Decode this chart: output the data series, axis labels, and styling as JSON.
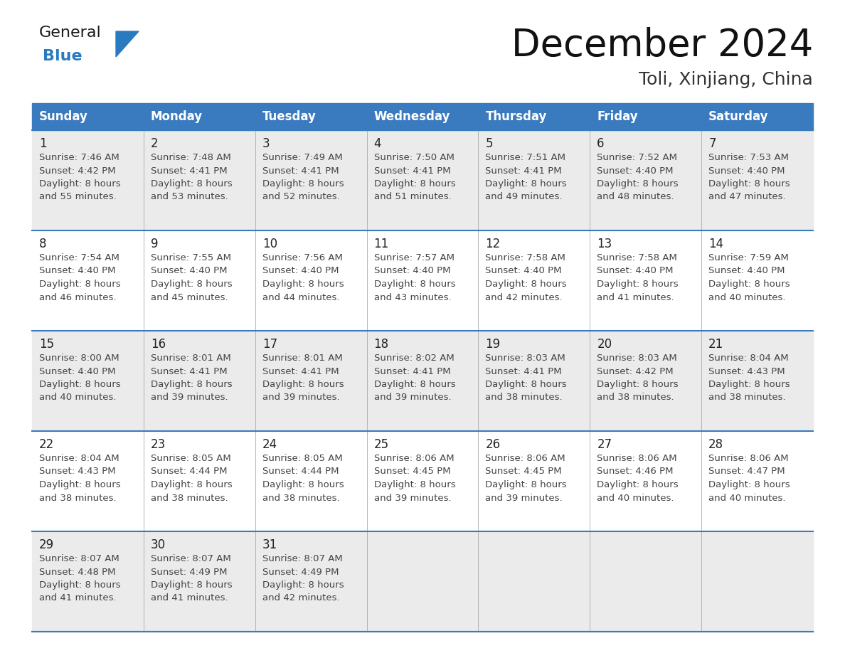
{
  "title": "December 2024",
  "subtitle": "Toli, Xinjiang, China",
  "days_of_week": [
    "Sunday",
    "Monday",
    "Tuesday",
    "Wednesday",
    "Thursday",
    "Friday",
    "Saturday"
  ],
  "header_color": "#3a7abf",
  "header_text_color": "#ffffff",
  "row_bg_odd": "#ebebeb",
  "row_bg_even": "#ffffff",
  "text_color": "#444444",
  "day_num_color": "#222222",
  "line_color": "#3a7abf",
  "background_color": "#ffffff",
  "logo_general_color": "#1a1a1a",
  "logo_blue_color": "#2a7abf",
  "weeks": [
    [
      {
        "day": 1,
        "sunrise": "7:46 AM",
        "sunset": "4:42 PM",
        "daylight": "8 hours and 55 minutes."
      },
      {
        "day": 2,
        "sunrise": "7:48 AM",
        "sunset": "4:41 PM",
        "daylight": "8 hours and 53 minutes."
      },
      {
        "day": 3,
        "sunrise": "7:49 AM",
        "sunset": "4:41 PM",
        "daylight": "8 hours and 52 minutes."
      },
      {
        "day": 4,
        "sunrise": "7:50 AM",
        "sunset": "4:41 PM",
        "daylight": "8 hours and 51 minutes."
      },
      {
        "day": 5,
        "sunrise": "7:51 AM",
        "sunset": "4:41 PM",
        "daylight": "8 hours and 49 minutes."
      },
      {
        "day": 6,
        "sunrise": "7:52 AM",
        "sunset": "4:40 PM",
        "daylight": "8 hours and 48 minutes."
      },
      {
        "day": 7,
        "sunrise": "7:53 AM",
        "sunset": "4:40 PM",
        "daylight": "8 hours and 47 minutes."
      }
    ],
    [
      {
        "day": 8,
        "sunrise": "7:54 AM",
        "sunset": "4:40 PM",
        "daylight": "8 hours and 46 minutes."
      },
      {
        "day": 9,
        "sunrise": "7:55 AM",
        "sunset": "4:40 PM",
        "daylight": "8 hours and 45 minutes."
      },
      {
        "day": 10,
        "sunrise": "7:56 AM",
        "sunset": "4:40 PM",
        "daylight": "8 hours and 44 minutes."
      },
      {
        "day": 11,
        "sunrise": "7:57 AM",
        "sunset": "4:40 PM",
        "daylight": "8 hours and 43 minutes."
      },
      {
        "day": 12,
        "sunrise": "7:58 AM",
        "sunset": "4:40 PM",
        "daylight": "8 hours and 42 minutes."
      },
      {
        "day": 13,
        "sunrise": "7:58 AM",
        "sunset": "4:40 PM",
        "daylight": "8 hours and 41 minutes."
      },
      {
        "day": 14,
        "sunrise": "7:59 AM",
        "sunset": "4:40 PM",
        "daylight": "8 hours and 40 minutes."
      }
    ],
    [
      {
        "day": 15,
        "sunrise": "8:00 AM",
        "sunset": "4:40 PM",
        "daylight": "8 hours and 40 minutes."
      },
      {
        "day": 16,
        "sunrise": "8:01 AM",
        "sunset": "4:41 PM",
        "daylight": "8 hours and 39 minutes."
      },
      {
        "day": 17,
        "sunrise": "8:01 AM",
        "sunset": "4:41 PM",
        "daylight": "8 hours and 39 minutes."
      },
      {
        "day": 18,
        "sunrise": "8:02 AM",
        "sunset": "4:41 PM",
        "daylight": "8 hours and 39 minutes."
      },
      {
        "day": 19,
        "sunrise": "8:03 AM",
        "sunset": "4:41 PM",
        "daylight": "8 hours and 38 minutes."
      },
      {
        "day": 20,
        "sunrise": "8:03 AM",
        "sunset": "4:42 PM",
        "daylight": "8 hours and 38 minutes."
      },
      {
        "day": 21,
        "sunrise": "8:04 AM",
        "sunset": "4:43 PM",
        "daylight": "8 hours and 38 minutes."
      }
    ],
    [
      {
        "day": 22,
        "sunrise": "8:04 AM",
        "sunset": "4:43 PM",
        "daylight": "8 hours and 38 minutes."
      },
      {
        "day": 23,
        "sunrise": "8:05 AM",
        "sunset": "4:44 PM",
        "daylight": "8 hours and 38 minutes."
      },
      {
        "day": 24,
        "sunrise": "8:05 AM",
        "sunset": "4:44 PM",
        "daylight": "8 hours and 38 minutes."
      },
      {
        "day": 25,
        "sunrise": "8:06 AM",
        "sunset": "4:45 PM",
        "daylight": "8 hours and 39 minutes."
      },
      {
        "day": 26,
        "sunrise": "8:06 AM",
        "sunset": "4:45 PM",
        "daylight": "8 hours and 39 minutes."
      },
      {
        "day": 27,
        "sunrise": "8:06 AM",
        "sunset": "4:46 PM",
        "daylight": "8 hours and 40 minutes."
      },
      {
        "day": 28,
        "sunrise": "8:06 AM",
        "sunset": "4:47 PM",
        "daylight": "8 hours and 40 minutes."
      }
    ],
    [
      {
        "day": 29,
        "sunrise": "8:07 AM",
        "sunset": "4:48 PM",
        "daylight": "8 hours and 41 minutes."
      },
      {
        "day": 30,
        "sunrise": "8:07 AM",
        "sunset": "4:49 PM",
        "daylight": "8 hours and 41 minutes."
      },
      {
        "day": 31,
        "sunrise": "8:07 AM",
        "sunset": "4:49 PM",
        "daylight": "8 hours and 42 minutes."
      },
      null,
      null,
      null,
      null
    ]
  ]
}
